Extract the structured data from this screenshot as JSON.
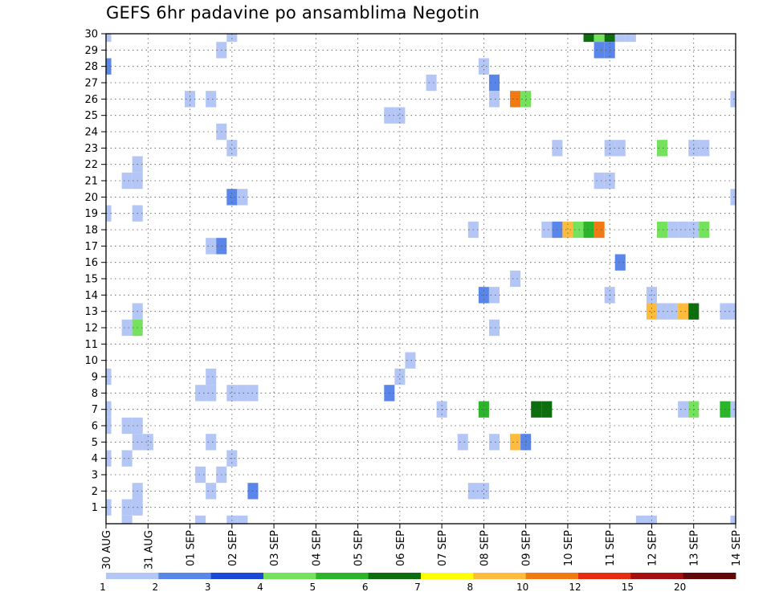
{
  "chart_data": {
    "type": "heatmap",
    "title": "GEFS 6hr padavine po ansamblima Negotin",
    "x_tick_labels": [
      "30 AUG",
      "31 AUG",
      "01 SEP",
      "02 SEP",
      "03 SEP",
      "04 SEP",
      "05 SEP",
      "06 SEP",
      "07 SEP",
      "08 SEP",
      "09 SEP",
      "10 SEP",
      "11 SEP",
      "12 SEP",
      "13 SEP",
      "14 SEP"
    ],
    "time_steps_per_day": 4,
    "time_steps_total": 61,
    "y_tick_labels": [
      "1",
      "2",
      "3",
      "4",
      "5",
      "6",
      "7",
      "8",
      "9",
      "10",
      "11",
      "12",
      "13",
      "14",
      "15",
      "16",
      "17",
      "18",
      "19",
      "20",
      "21",
      "22",
      "23",
      "24",
      "25",
      "26",
      "27",
      "28",
      "29",
      "30"
    ],
    "ensemble_members": 31,
    "grid": true,
    "colorbar": {
      "labels": [
        "1",
        "2",
        "3",
        "4",
        "5",
        "6",
        "7",
        "8",
        "10",
        "12",
        "15",
        "20"
      ],
      "colors": [
        "#b3c6f5",
        "#5a86ea",
        "#1c48d8",
        "#74e25c",
        "#2ab52a",
        "#0c6e0c",
        "#ffff00",
        "#ffbc3c",
        "#f27a12",
        "#e62d10",
        "#a31010",
        "#620808"
      ]
    },
    "cells": [
      {
        "m": 30,
        "t": 0,
        "v": 1.5
      },
      {
        "m": 30,
        "t": 12,
        "v": 1.3
      },
      {
        "m": 30,
        "t": 46,
        "v": 6.5
      },
      {
        "m": 30,
        "t": 47,
        "v": 4.5
      },
      {
        "m": 30,
        "t": 48,
        "v": 6.5
      },
      {
        "m": 30,
        "t": 49,
        "v": 1.3
      },
      {
        "m": 30,
        "t": 50,
        "v": 1.3
      },
      {
        "m": 29,
        "t": 11,
        "v": 1.3
      },
      {
        "m": 29,
        "t": 47,
        "v": 2.6
      },
      {
        "m": 29,
        "t": 48,
        "v": 2.6
      },
      {
        "m": 28,
        "t": 0,
        "v": 2.6
      },
      {
        "m": 28,
        "t": 36,
        "v": 1.3
      },
      {
        "m": 27,
        "t": 31,
        "v": 1.3
      },
      {
        "m": 27,
        "t": 37,
        "v": 2.1
      },
      {
        "m": 26,
        "t": 8,
        "v": 1.3
      },
      {
        "m": 26,
        "t": 10,
        "v": 1.3
      },
      {
        "m": 26,
        "t": 37,
        "v": 1.3
      },
      {
        "m": 26,
        "t": 39,
        "v": 11
      },
      {
        "m": 26,
        "t": 40,
        "v": 4.5
      },
      {
        "m": 26,
        "t": 60,
        "v": 1.3
      },
      {
        "m": 25,
        "t": 27,
        "v": 1.5
      },
      {
        "m": 25,
        "t": 28,
        "v": 1.3
      },
      {
        "m": 24,
        "t": 11,
        "v": 1.3
      },
      {
        "m": 23,
        "t": 12,
        "v": 1.3
      },
      {
        "m": 23,
        "t": 43,
        "v": 1.3
      },
      {
        "m": 23,
        "t": 48,
        "v": 1.3
      },
      {
        "m": 23,
        "t": 49,
        "v": 1.3
      },
      {
        "m": 23,
        "t": 53,
        "v": 4.5
      },
      {
        "m": 23,
        "t": 56,
        "v": 1.3
      },
      {
        "m": 23,
        "t": 57,
        "v": 1.3
      },
      {
        "m": 22,
        "t": 3,
        "v": 1.3
      },
      {
        "m": 21,
        "t": 2,
        "v": 1.3
      },
      {
        "m": 21,
        "t": 3,
        "v": 1.3
      },
      {
        "m": 21,
        "t": 47,
        "v": 1.3
      },
      {
        "m": 21,
        "t": 48,
        "v": 1.3
      },
      {
        "m": 20,
        "t": 12,
        "v": 2.1
      },
      {
        "m": 20,
        "t": 13,
        "v": 1.3
      },
      {
        "m": 20,
        "t": 60,
        "v": 1.5
      },
      {
        "m": 19,
        "t": 0,
        "v": 1.5
      },
      {
        "m": 19,
        "t": 3,
        "v": 1.3
      },
      {
        "m": 18,
        "t": 35,
        "v": 1.3
      },
      {
        "m": 18,
        "t": 42,
        "v": 1.3
      },
      {
        "m": 18,
        "t": 43,
        "v": 2.6
      },
      {
        "m": 18,
        "t": 44,
        "v": 9
      },
      {
        "m": 18,
        "t": 45,
        "v": 4.5
      },
      {
        "m": 18,
        "t": 46,
        "v": 5.5
      },
      {
        "m": 18,
        "t": 47,
        "v": 11
      },
      {
        "m": 18,
        "t": 53,
        "v": 4.5
      },
      {
        "m": 18,
        "t": 54,
        "v": 1.5
      },
      {
        "m": 18,
        "t": 55,
        "v": 1.5
      },
      {
        "m": 18,
        "t": 56,
        "v": 1.3
      },
      {
        "m": 18,
        "t": 57,
        "v": 4.5
      },
      {
        "m": 17,
        "t": 10,
        "v": 1.3
      },
      {
        "m": 17,
        "t": 11,
        "v": 2.6
      },
      {
        "m": 16,
        "t": 49,
        "v": 2.6
      },
      {
        "m": 15,
        "t": 39,
        "v": 1.3
      },
      {
        "m": 14,
        "t": 36,
        "v": 2.6
      },
      {
        "m": 14,
        "t": 37,
        "v": 1.5
      },
      {
        "m": 14,
        "t": 48,
        "v": 1.3
      },
      {
        "m": 14,
        "t": 52,
        "v": 1.5
      },
      {
        "m": 13,
        "t": 3,
        "v": 1.3
      },
      {
        "m": 13,
        "t": 52,
        "v": 9
      },
      {
        "m": 13,
        "t": 53,
        "v": 1.5
      },
      {
        "m": 13,
        "t": 54,
        "v": 1.5
      },
      {
        "m": 13,
        "t": 55,
        "v": 9
      },
      {
        "m": 13,
        "t": 56,
        "v": 6.5
      },
      {
        "m": 13,
        "t": 59,
        "v": 1.3
      },
      {
        "m": 13,
        "t": 60,
        "v": 1.3
      },
      {
        "m": 12,
        "t": 2,
        "v": 1.3
      },
      {
        "m": 12,
        "t": 3,
        "v": 4.5
      },
      {
        "m": 12,
        "t": 37,
        "v": 1.3
      },
      {
        "m": 10,
        "t": 29,
        "v": 1.5
      },
      {
        "m": 9,
        "t": 0,
        "v": 1.5
      },
      {
        "m": 9,
        "t": 10,
        "v": 1.3
      },
      {
        "m": 9,
        "t": 28,
        "v": 1.3
      },
      {
        "m": 8,
        "t": 9,
        "v": 1.3
      },
      {
        "m": 8,
        "t": 10,
        "v": 1.3
      },
      {
        "m": 8,
        "t": 13,
        "v": 1.3
      },
      {
        "m": 8,
        "t": 14,
        "v": 1.3
      },
      {
        "m": 8,
        "t": 12,
        "v": 1.3
      },
      {
        "m": 8,
        "t": 27,
        "v": 2.6
      },
      {
        "m": 7,
        "t": 0,
        "v": 1.5
      },
      {
        "m": 7,
        "t": 32,
        "v": 1.3
      },
      {
        "m": 7,
        "t": 36,
        "v": 5.5
      },
      {
        "m": 7,
        "t": 41,
        "v": 6.5
      },
      {
        "m": 7,
        "t": 42,
        "v": 6.5
      },
      {
        "m": 7,
        "t": 55,
        "v": 1.3
      },
      {
        "m": 7,
        "t": 56,
        "v": 4.5
      },
      {
        "m": 7,
        "t": 59,
        "v": 5.5
      },
      {
        "m": 7,
        "t": 60,
        "v": 1.5
      },
      {
        "m": 6,
        "t": 0,
        "v": 1.5
      },
      {
        "m": 6,
        "t": 2,
        "v": 1.5
      },
      {
        "m": 6,
        "t": 3,
        "v": 1.3
      },
      {
        "m": 5,
        "t": 3,
        "v": 1.3
      },
      {
        "m": 5,
        "t": 4,
        "v": 1.3
      },
      {
        "m": 5,
        "t": 10,
        "v": 1.3
      },
      {
        "m": 5,
        "t": 34,
        "v": 1.3
      },
      {
        "m": 5,
        "t": 37,
        "v": 1.3
      },
      {
        "m": 5,
        "t": 39,
        "v": 9
      },
      {
        "m": 5,
        "t": 40,
        "v": 2.6
      },
      {
        "m": 4,
        "t": 0,
        "v": 1.5
      },
      {
        "m": 4,
        "t": 2,
        "v": 1.3
      },
      {
        "m": 4,
        "t": 12,
        "v": 1.3
      },
      {
        "m": 3,
        "t": 9,
        "v": 1.3
      },
      {
        "m": 3,
        "t": 11,
        "v": 1.3
      },
      {
        "m": 2,
        "t": 3,
        "v": 1.5
      },
      {
        "m": 2,
        "t": 10,
        "v": 1.5
      },
      {
        "m": 2,
        "t": 14,
        "v": 2.6
      },
      {
        "m": 2,
        "t": 35,
        "v": 1.3
      },
      {
        "m": 2,
        "t": 36,
        "v": 1.3
      },
      {
        "m": 1,
        "t": 0,
        "v": 1.3
      },
      {
        "m": 1,
        "t": 2,
        "v": 1.3
      },
      {
        "m": 1,
        "t": 3,
        "v": 1.3
      },
      {
        "m": 0,
        "t": 2,
        "v": 1.5
      },
      {
        "m": 0,
        "t": 9,
        "v": 1.3
      },
      {
        "m": 0,
        "t": 12,
        "v": 1.3
      },
      {
        "m": 0,
        "t": 13,
        "v": 1.3
      },
      {
        "m": 0,
        "t": 51,
        "v": 1.3
      },
      {
        "m": 0,
        "t": 52,
        "v": 1.3
      },
      {
        "m": 0,
        "t": 60,
        "v": 1.3
      }
    ]
  }
}
